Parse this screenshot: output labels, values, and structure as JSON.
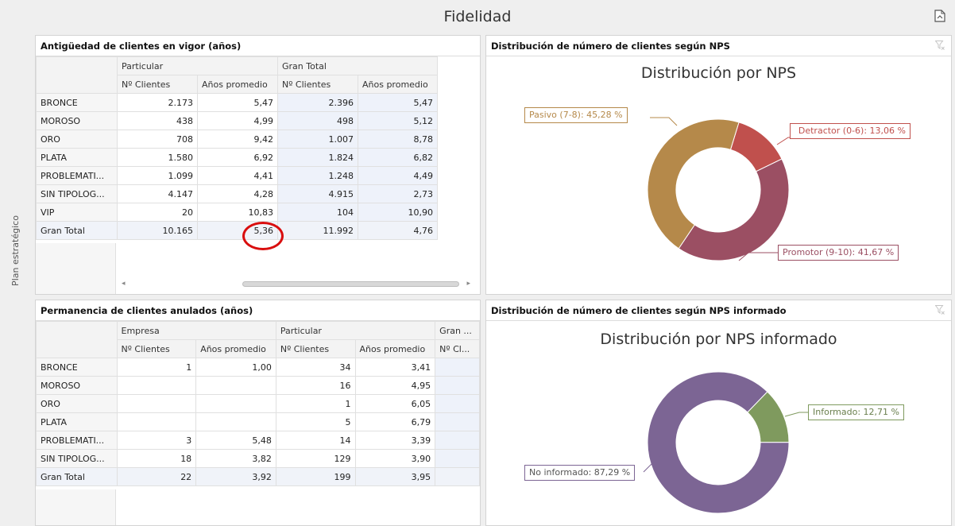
{
  "page": {
    "title": "Fidelidad",
    "side_label": "Plan estratégico"
  },
  "icons": {
    "export": "export-pdf-icon",
    "filter": "clear-filter-icon"
  },
  "panel_top_left": {
    "header": "Antigüedad de clientes en vigor (años)",
    "group_headers": [
      "Particular",
      "Gran Total"
    ],
    "col_headers": [
      "Nº Clientes",
      "Años promedio",
      "Nº Clientes",
      "Años promedio"
    ],
    "rows": [
      {
        "label": "BRONCE",
        "values": [
          "2.173",
          "5,47",
          "2.396",
          "5,47"
        ]
      },
      {
        "label": "MOROSO",
        "values": [
          "438",
          "4,99",
          "498",
          "5,12"
        ]
      },
      {
        "label": "ORO",
        "values": [
          "708",
          "9,42",
          "1.007",
          "8,78"
        ]
      },
      {
        "label": "PLATA",
        "values": [
          "1.580",
          "6,92",
          "1.824",
          "6,82"
        ]
      },
      {
        "label": "PROBLEMATI...",
        "values": [
          "1.099",
          "4,41",
          "1.248",
          "4,49"
        ]
      },
      {
        "label": "SIN TIPOLOG...",
        "values": [
          "4.147",
          "4,28",
          "4.915",
          "2,73"
        ]
      },
      {
        "label": "VIP",
        "values": [
          "20",
          "10,83",
          "104",
          "10,90"
        ]
      },
      {
        "label": "Gran Total",
        "values": [
          "10.165",
          "5,36",
          "11.992",
          "4,76"
        ]
      }
    ],
    "scroll_left": "◂",
    "scroll_right": "▸"
  },
  "panel_bottom_left": {
    "header": "Permanencia de clientes anulados (años)",
    "group_headers": [
      "Empresa",
      "Particular",
      "Gran ..."
    ],
    "col_headers": [
      "Nº Clientes",
      "Años promedio",
      "Nº Clientes",
      "Años promedio",
      "Nº Cl..."
    ],
    "rows": [
      {
        "label": "BRONCE",
        "values": [
          "1",
          "1,00",
          "34",
          "3,41",
          ""
        ]
      },
      {
        "label": "MOROSO",
        "values": [
          "",
          "",
          "16",
          "4,95",
          ""
        ]
      },
      {
        "label": "ORO",
        "values": [
          "",
          "",
          "1",
          "6,05",
          ""
        ]
      },
      {
        "label": "PLATA",
        "values": [
          "",
          "",
          "5",
          "6,79",
          ""
        ]
      },
      {
        "label": "PROBLEMATI...",
        "values": [
          "3",
          "5,48",
          "14",
          "3,39",
          ""
        ]
      },
      {
        "label": "SIN TIPOLOG...",
        "values": [
          "18",
          "3,82",
          "129",
          "3,90",
          ""
        ]
      },
      {
        "label": "Gran Total",
        "values": [
          "22",
          "3,92",
          "199",
          "3,95",
          ""
        ]
      }
    ]
  },
  "panel_top_right": {
    "header": "Distribución de número de clientes según NPS",
    "chart_data": {
      "type": "pie",
      "title": "Distribución por NPS",
      "slices": [
        {
          "label": "Detractor (0-6): 13,06 %",
          "value": 13.06,
          "color": "#c0504d"
        },
        {
          "label": "Promotor (9-10): 41,67 %",
          "value": 41.67,
          "color": "#9b4f63"
        },
        {
          "label": "Pasivo (7-8): 45,28 %",
          "value": 45.28,
          "color": "#b5894a"
        }
      ]
    }
  },
  "panel_bottom_right": {
    "header": "Distribución de número de clientes según NPS informado",
    "chart_data": {
      "type": "pie",
      "title": "Distribución por NPS informado",
      "slices": [
        {
          "label": "Informado: 12,71 %",
          "value": 12.71,
          "color": "#7f9a5e"
        },
        {
          "label": "No informado: 87,29 %",
          "value": 87.29,
          "color": "#7c6594"
        }
      ]
    }
  }
}
